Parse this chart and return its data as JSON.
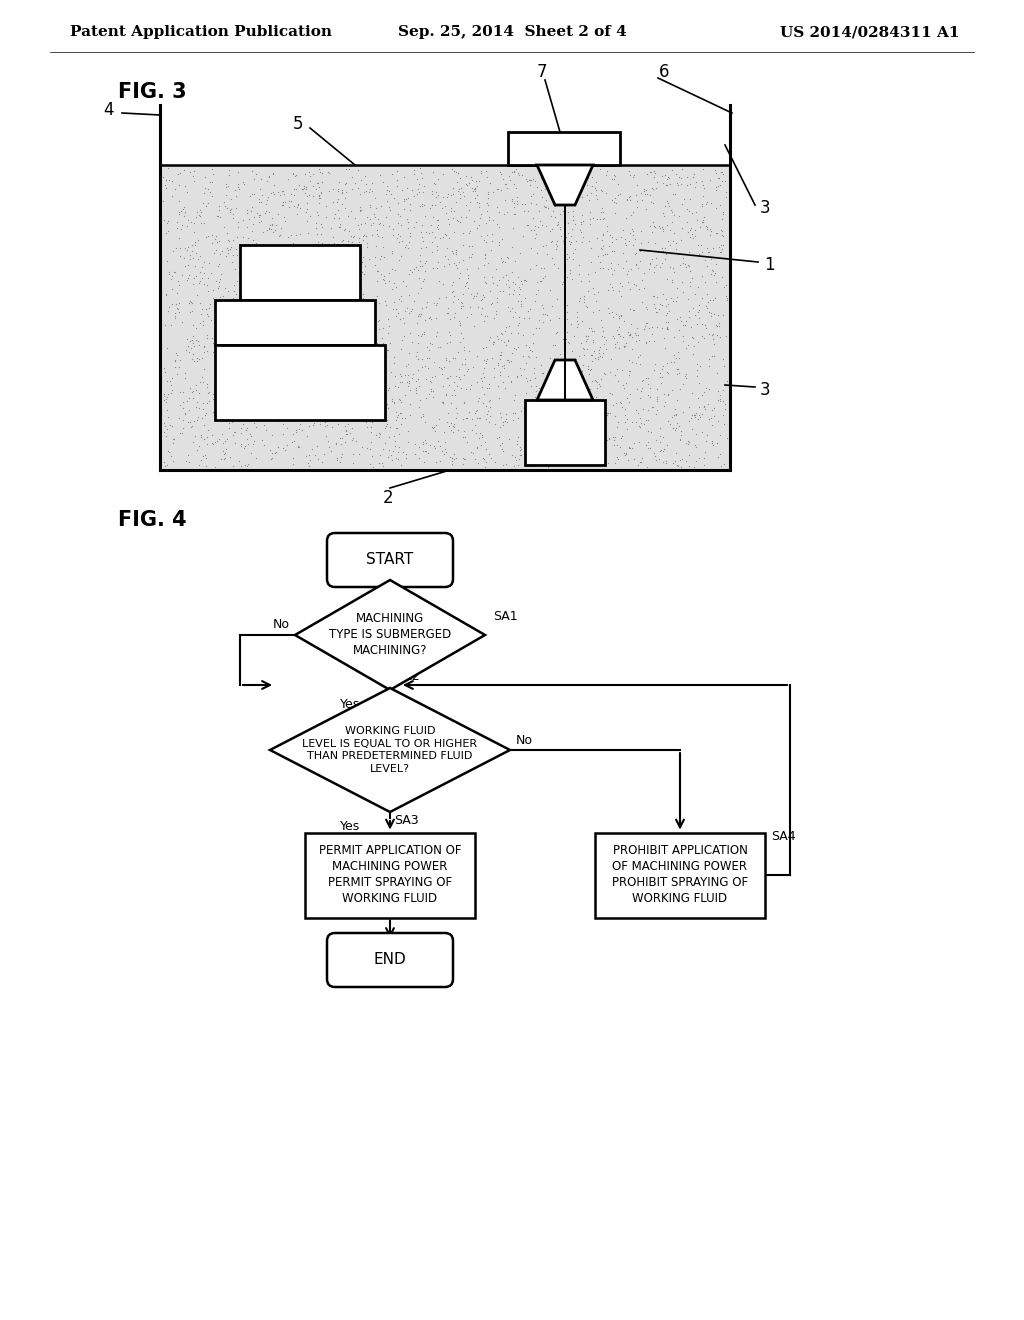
{
  "background_color": "#ffffff",
  "header_left": "Patent Application Publication",
  "header_center": "Sep. 25, 2014  Sheet 2 of 4",
  "header_right": "US 2014/0284311 A1",
  "header_fontsize": 11,
  "fig3_label": "FIG. 3",
  "fig4_label": "FIG. 4",
  "stipple_color": "#c8c8c8",
  "line_color": "#000000"
}
